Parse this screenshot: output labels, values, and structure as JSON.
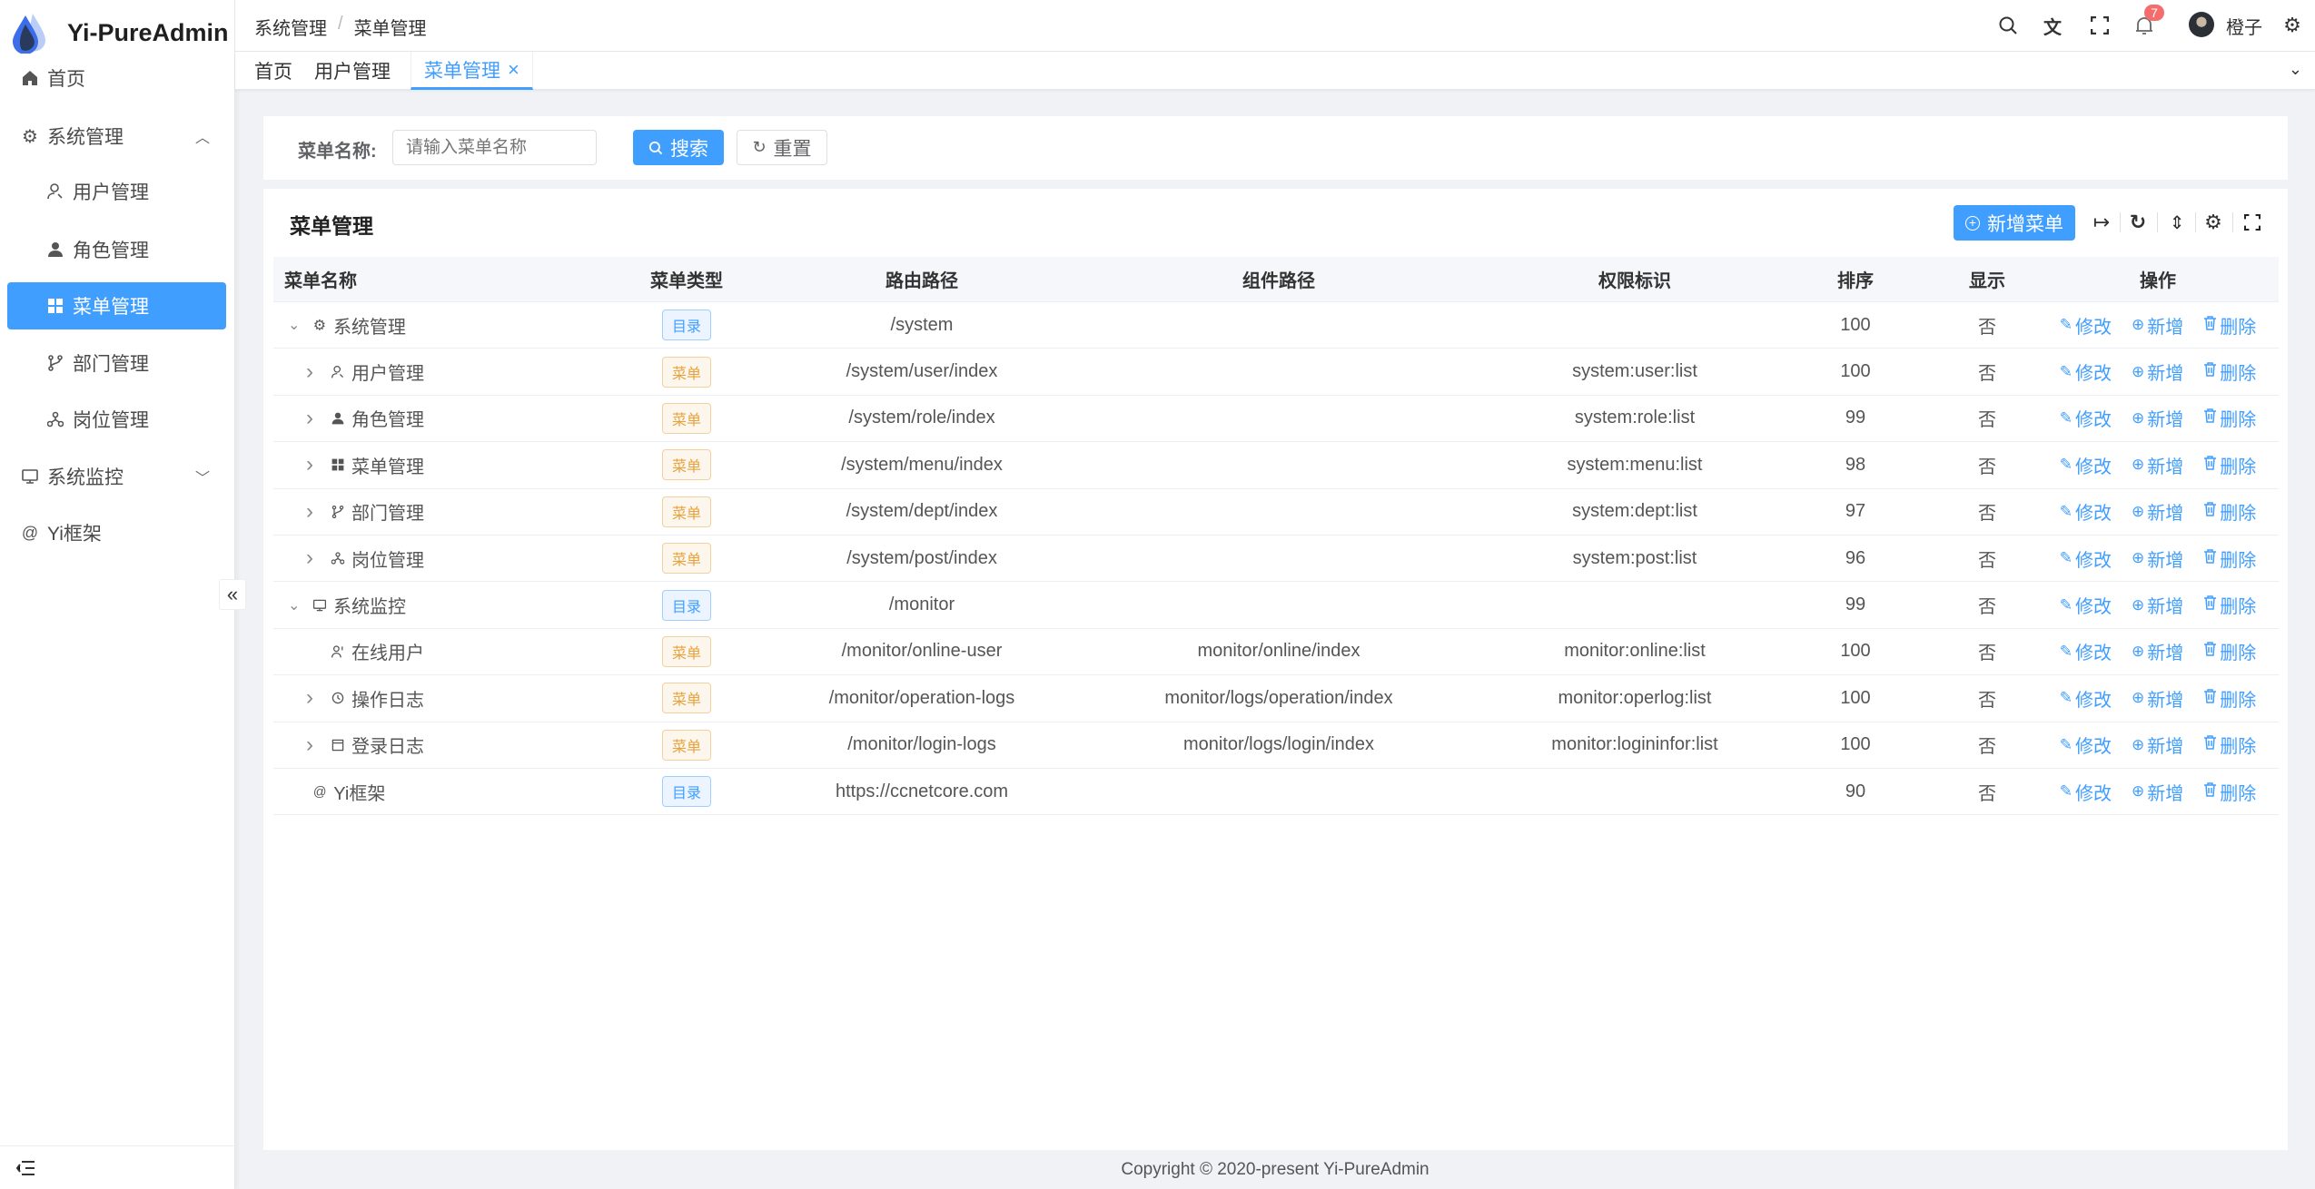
{
  "app": {
    "title": "Yi-PureAdmin"
  },
  "sidebar": {
    "items": [
      {
        "label": "首页",
        "icon": "home-icon"
      },
      {
        "label": "系统管理",
        "icon": "gear-icon",
        "expanded": true
      },
      {
        "label": "用户管理",
        "icon": "user-icon"
      },
      {
        "label": "角色管理",
        "icon": "role-icon"
      },
      {
        "label": "菜单管理",
        "icon": "grid-icon",
        "active": true
      },
      {
        "label": "部门管理",
        "icon": "branch-icon"
      },
      {
        "label": "岗位管理",
        "icon": "org-icon"
      },
      {
        "label": "系统监控",
        "icon": "monitor-icon",
        "expanded": false
      },
      {
        "label": "Yi框架",
        "icon": "at-icon"
      }
    ]
  },
  "header": {
    "breadcrumb": [
      "系统管理",
      "菜单管理"
    ],
    "breadcrumb_sep": "/",
    "notification_count": "7",
    "username": "橙子"
  },
  "tabs": [
    {
      "label": "首页"
    },
    {
      "label": "用户管理"
    },
    {
      "label": "菜单管理",
      "active": true,
      "close": "×"
    }
  ],
  "search": {
    "label": "菜单名称:",
    "placeholder": "请输入菜单名称",
    "search_label": "搜索",
    "reset_label": "重置"
  },
  "table_card": {
    "title": "菜单管理",
    "add_label": "新增菜单"
  },
  "table": {
    "columns": [
      "菜单名称",
      "菜单类型",
      "路由路径",
      "组件路径",
      "权限标识",
      "排序",
      "显示",
      "操作"
    ],
    "actions": {
      "edit": "修改",
      "add": "新增",
      "delete": "删除"
    },
    "rows": [
      {
        "level": 0,
        "expand": "open",
        "icon": "gear-icon",
        "name": "系统管理",
        "type": "目录",
        "kind": "dir",
        "route": "/system",
        "component": "",
        "perm": "",
        "sort": "100",
        "show": "否"
      },
      {
        "level": 1,
        "expand": "closed",
        "icon": "user-icon",
        "name": "用户管理",
        "type": "菜单",
        "kind": "menu",
        "route": "/system/user/index",
        "component": "",
        "perm": "system:user:list",
        "sort": "100",
        "show": "否"
      },
      {
        "level": 1,
        "expand": "closed",
        "icon": "role-icon",
        "name": "角色管理",
        "type": "菜单",
        "kind": "menu",
        "route": "/system/role/index",
        "component": "",
        "perm": "system:role:list",
        "sort": "99",
        "show": "否"
      },
      {
        "level": 1,
        "expand": "closed",
        "icon": "grid-icon",
        "name": "菜单管理",
        "type": "菜单",
        "kind": "menu",
        "route": "/system/menu/index",
        "component": "",
        "perm": "system:menu:list",
        "sort": "98",
        "show": "否"
      },
      {
        "level": 1,
        "expand": "closed",
        "icon": "branch-icon",
        "name": "部门管理",
        "type": "菜单",
        "kind": "menu",
        "route": "/system/dept/index",
        "component": "",
        "perm": "system:dept:list",
        "sort": "97",
        "show": "否"
      },
      {
        "level": 1,
        "expand": "closed",
        "icon": "org-icon",
        "name": "岗位管理",
        "type": "菜单",
        "kind": "menu",
        "route": "/system/post/index",
        "component": "",
        "perm": "system:post:list",
        "sort": "96",
        "show": "否"
      },
      {
        "level": 0,
        "expand": "open",
        "icon": "monitor-icon",
        "name": "系统监控",
        "type": "目录",
        "kind": "dir",
        "route": "/monitor",
        "component": "",
        "perm": "",
        "sort": "99",
        "show": "否"
      },
      {
        "level": 1,
        "expand": "none",
        "icon": "online-user-icon",
        "name": "在线用户",
        "type": "菜单",
        "kind": "menu",
        "route": "/monitor/online-user",
        "component": "monitor/online/index",
        "perm": "monitor:online:list",
        "sort": "100",
        "show": "否"
      },
      {
        "level": 1,
        "expand": "closed",
        "icon": "history-icon",
        "name": "操作日志",
        "type": "菜单",
        "kind": "menu",
        "route": "/monitor/operation-logs",
        "component": "monitor/logs/operation/index",
        "perm": "monitor:operlog:list",
        "sort": "100",
        "show": "否"
      },
      {
        "level": 1,
        "expand": "closed",
        "icon": "window-icon",
        "name": "登录日志",
        "type": "菜单",
        "kind": "menu",
        "route": "/monitor/login-logs",
        "component": "monitor/logs/login/index",
        "perm": "monitor:logininfor:list",
        "sort": "100",
        "show": "否"
      },
      {
        "level": 0,
        "expand": "none",
        "icon": "at-icon",
        "name": "Yi框架",
        "type": "目录",
        "kind": "dir",
        "route": "https://ccnetcore.com",
        "component": "",
        "perm": "",
        "sort": "90",
        "show": "否"
      }
    ]
  },
  "footer": {
    "text": "Copyright © 2020-present Yi-PureAdmin"
  },
  "colors": {
    "primary": "#409eff",
    "warning": "#e6a23c",
    "badge": "#f56c6c",
    "bg": "#f0f2f5"
  }
}
